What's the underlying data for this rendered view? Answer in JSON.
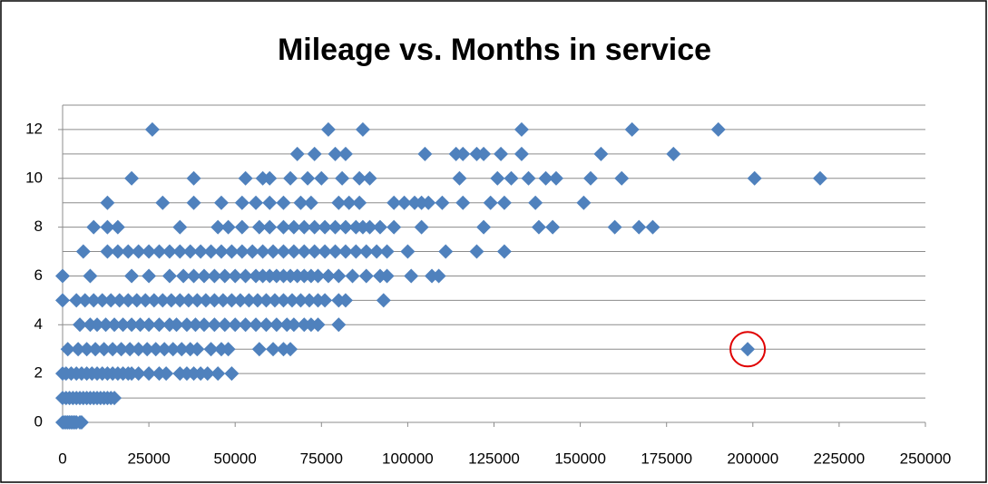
{
  "chart_data": {
    "type": "scatter",
    "title": "Mileage vs. Months in service",
    "color": "#4f81bd",
    "xlim": [
      0,
      250000
    ],
    "xticks": [
      0,
      25000,
      50000,
      75000,
      100000,
      125000,
      150000,
      175000,
      200000,
      225000,
      250000
    ],
    "ylim": [
      0,
      13
    ],
    "yticks": [
      0,
      2,
      4,
      6,
      8,
      10,
      12
    ],
    "grid": true,
    "minor_grid": true,
    "highlight_index": 0,
    "highlight_color": "#e00000",
    "x": [
      198500,
      0,
      500,
      1000,
      1500,
      2000,
      2500,
      3000,
      3500,
      4000,
      5000,
      5500,
      0,
      1000,
      2000,
      3000,
      4000,
      5000,
      6000,
      7000,
      8000,
      9000,
      10000,
      11000,
      12000,
      13000,
      14000,
      15000,
      0,
      1000,
      2500,
      4000,
      5500,
      7000,
      8500,
      10000,
      11500,
      13000,
      14500,
      16000,
      17500,
      19000,
      20000,
      22000,
      25000,
      28000,
      30000,
      34000,
      36000,
      38000,
      40000,
      42000,
      45000,
      49000,
      1500,
      4500,
      7000,
      9500,
      12000,
      14500,
      17000,
      19500,
      22000,
      24500,
      27000,
      29500,
      32000,
      34500,
      37000,
      39000,
      43000,
      46000,
      48000,
      57000,
      61000,
      64000,
      66000,
      5000,
      8000,
      10000,
      12500,
      15000,
      17500,
      20000,
      22500,
      25000,
      28000,
      31000,
      33000,
      36000,
      38500,
      41000,
      44000,
      47000,
      50000,
      53000,
      56000,
      59000,
      62000,
      65000,
      67000,
      70000,
      72000,
      74000,
      80000,
      0,
      4000,
      6500,
      9000,
      11500,
      14000,
      16500,
      19000,
      21500,
      24000,
      26500,
      29000,
      31500,
      34000,
      36500,
      39000,
      41500,
      44000,
      46500,
      49000,
      51500,
      54000,
      56500,
      59000,
      61500,
      64000,
      66500,
      69000,
      71500,
      74000,
      76000,
      80000,
      82000,
      93000,
      0,
      8000,
      20000,
      25000,
      31000,
      35000,
      38000,
      41000,
      44000,
      47000,
      50000,
      53000,
      56000,
      58000,
      60000,
      62000,
      64000,
      66000,
      68000,
      70000,
      72000,
      74000,
      77000,
      80000,
      84000,
      88000,
      92000,
      94000,
      101000,
      107000,
      109000,
      6000,
      13000,
      16000,
      19000,
      22000,
      25000,
      28000,
      31000,
      34000,
      37000,
      40000,
      43000,
      46000,
      49000,
      52000,
      55000,
      58000,
      61000,
      64000,
      67000,
      70000,
      73000,
      76000,
      79000,
      82000,
      85000,
      88000,
      91000,
      94000,
      100000,
      111000,
      120000,
      128000,
      9000,
      13000,
      16000,
      34000,
      45000,
      48000,
      52000,
      57000,
      60000,
      64000,
      67000,
      70000,
      73000,
      76000,
      79000,
      82000,
      85000,
      87000,
      89000,
      92000,
      96000,
      104000,
      122000,
      138000,
      142000,
      160000,
      167000,
      171000,
      13000,
      29000,
      38000,
      46000,
      52000,
      56000,
      60000,
      64000,
      69000,
      72000,
      80000,
      83000,
      86000,
      96000,
      99000,
      102000,
      104000,
      106000,
      110000,
      116000,
      124000,
      128000,
      137000,
      151000,
      20000,
      38000,
      53000,
      58000,
      60000,
      66000,
      71000,
      75000,
      81000,
      86000,
      89000,
      115000,
      126000,
      130000,
      135000,
      140000,
      143000,
      153000,
      162000,
      200500,
      219500,
      68000,
      73000,
      79000,
      82000,
      105000,
      114000,
      116000,
      120000,
      122000,
      127000,
      133000,
      156000,
      177000,
      26000,
      77000,
      87000,
      133000,
      165000,
      190000
    ],
    "values": [
      3,
      0,
      0,
      0,
      0,
      0,
      0,
      0,
      0,
      0,
      0,
      0,
      1,
      1,
      1,
      1,
      1,
      1,
      1,
      1,
      1,
      1,
      1,
      1,
      1,
      1,
      1,
      1,
      2,
      2,
      2,
      2,
      2,
      2,
      2,
      2,
      2,
      2,
      2,
      2,
      2,
      2,
      2,
      2,
      2,
      2,
      2,
      2,
      2,
      2,
      2,
      2,
      2,
      2,
      3,
      3,
      3,
      3,
      3,
      3,
      3,
      3,
      3,
      3,
      3,
      3,
      3,
      3,
      3,
      3,
      3,
      3,
      3,
      3,
      3,
      3,
      3,
      4,
      4,
      4,
      4,
      4,
      4,
      4,
      4,
      4,
      4,
      4,
      4,
      4,
      4,
      4,
      4,
      4,
      4,
      4,
      4,
      4,
      4,
      4,
      4,
      4,
      4,
      4,
      4,
      5,
      5,
      5,
      5,
      5,
      5,
      5,
      5,
      5,
      5,
      5,
      5,
      5,
      5,
      5,
      5,
      5,
      5,
      5,
      5,
      5,
      5,
      5,
      5,
      5,
      5,
      5,
      5,
      5,
      5,
      5,
      5,
      5,
      5,
      6,
      6,
      6,
      6,
      6,
      6,
      6,
      6,
      6,
      6,
      6,
      6,
      6,
      6,
      6,
      6,
      6,
      6,
      6,
      6,
      6,
      6,
      6,
      6,
      6,
      6,
      6,
      6,
      6,
      6,
      6,
      7,
      7,
      7,
      7,
      7,
      7,
      7,
      7,
      7,
      7,
      7,
      7,
      7,
      7,
      7,
      7,
      7,
      7,
      7,
      7,
      7,
      7,
      7,
      7,
      7,
      7,
      7,
      7,
      7,
      7,
      7,
      7,
      7,
      8,
      8,
      8,
      8,
      8,
      8,
      8,
      8,
      8,
      8,
      8,
      8,
      8,
      8,
      8,
      8,
      8,
      8,
      8,
      8,
      8,
      8,
      8,
      8,
      8,
      8,
      8,
      8,
      9,
      9,
      9,
      9,
      9,
      9,
      9,
      9,
      9,
      9,
      9,
      9,
      9,
      9,
      9,
      9,
      9,
      9,
      9,
      9,
      9,
      9,
      9,
      9,
      10,
      10,
      10,
      10,
      10,
      10,
      10,
      10,
      10,
      10,
      10,
      10,
      10,
      10,
      10,
      10,
      10,
      10,
      10,
      10,
      10,
      11,
      11,
      11,
      11,
      11,
      11,
      11,
      11,
      11,
      11,
      11,
      11,
      11,
      12,
      12,
      12,
      12,
      12,
      12
    ]
  }
}
